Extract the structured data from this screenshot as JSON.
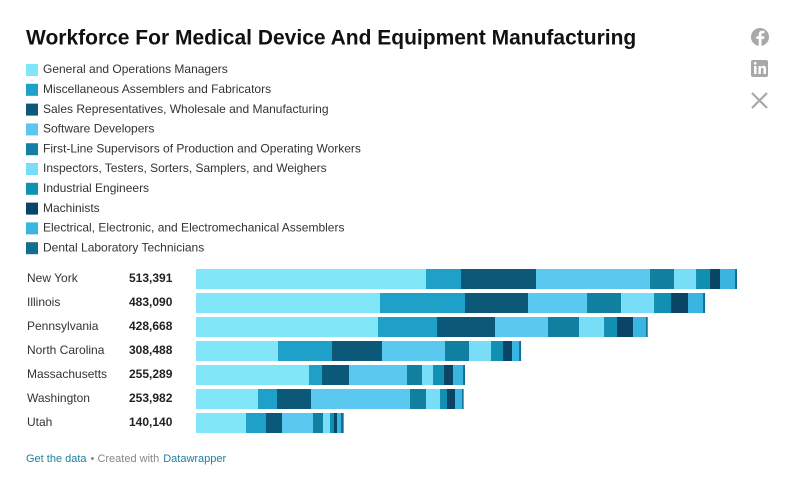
{
  "chart_data": {
    "type": "stacked-bar-horizontal",
    "title": "Workforce For Medical Device And Equipment Manufacturing",
    "categories": [
      "New York",
      "Illinois",
      "Pennsylvania",
      "North Carolina",
      "Massachusetts",
      "Washington",
      "Utah"
    ],
    "totals": [
      513391,
      483090,
      428668,
      308488,
      255289,
      253982,
      140140
    ],
    "total_labels": [
      "513,391",
      "483,090",
      "428,668",
      "308,488",
      "255,289",
      "253,982",
      "140,140"
    ],
    "series": [
      {
        "name": "General and Operations Managers",
        "color": "#80e6f8",
        "values": [
          218270,
          174620,
          172720,
          77820,
          107240,
          58840,
          47450
        ]
      },
      {
        "name": "Miscellaneous Assemblers and Fabricators",
        "color": "#1fa0c9",
        "values": [
          33215,
          80670,
          55990,
          51250,
          12340,
          18030,
          18980
        ]
      },
      {
        "name": "Sales Representatives, Wholesale and Manufacturing",
        "color": "#0b5878",
        "values": [
          71175,
          59790,
          55040,
          47450,
          25620,
          32270,
          15180
        ]
      },
      {
        "name": "Software Developers",
        "color": "#5bc8f0",
        "values": [
          108190,
          55990,
          50300,
          59790,
          55040,
          93950,
          29420
        ]
      },
      {
        "name": "First-Line Supervisors of Production and Operating Workers",
        "color": "#117f9f",
        "values": [
          22780,
          32270,
          29420,
          22780,
          14240,
          15180,
          9490
        ]
      },
      {
        "name": "Inspectors, Testers, Sorters, Samplers, and Weighers",
        "color": "#78def8",
        "values": [
          20880,
          31320,
          23730,
          20880,
          10440,
          13290,
          6640
        ]
      },
      {
        "name": "Industrial Engineers",
        "color": "#1290b3",
        "values": [
          13285,
          16130,
          12340,
          11390,
          10440,
          6640,
          3800
        ]
      },
      {
        "name": "Machinists",
        "color": "#0a4565",
        "values": [
          9490,
          16130,
          15180,
          8540,
          8540,
          7590,
          2850
        ]
      },
      {
        "name": "Electrical, Electronic, and Electromechanical Assemblers",
        "color": "#3ab4e0",
        "values": [
          14235,
          14240,
          12340,
          6640,
          9490,
          6640,
          3800
        ]
      },
      {
        "name": "Dental Laboratory Technicians",
        "color": "#136f92",
        "values": [
          1871,
          1930,
          1608,
          1948,
          1899,
          1552,
          2530
        ]
      }
    ],
    "footer": {
      "link": "Get the data",
      "credit": "• Created with",
      "credit_link": "Datawrapper"
    }
  }
}
